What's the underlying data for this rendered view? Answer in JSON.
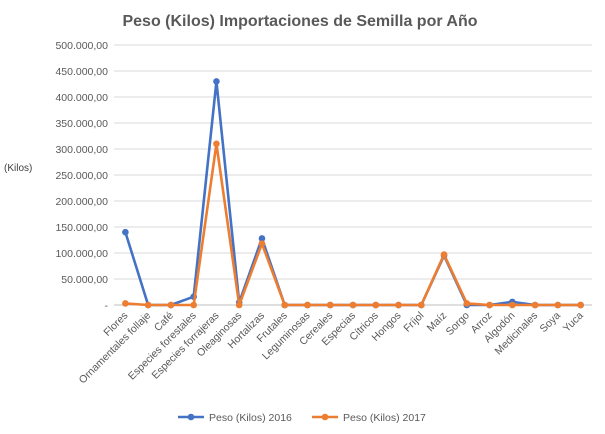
{
  "chart_data": {
    "type": "line",
    "title": "Peso (Kilos) Importaciones de Semilla por Año",
    "ylabel": "(Kilos)",
    "xlabel": "",
    "ylim": [
      0,
      500000
    ],
    "yticks": [
      0,
      50000,
      100000,
      150000,
      200000,
      250000,
      300000,
      350000,
      400000,
      450000,
      500000
    ],
    "ytick_labels": [
      "-",
      "50.000,00",
      "100.000,00",
      "150.000,00",
      "200.000,00",
      "250.000,00",
      "300.000,00",
      "350.000,00",
      "400.000,00",
      "450.000,00",
      "500.000,00"
    ],
    "grid": true,
    "legend_position": "bottom",
    "categories": [
      "Flores",
      "Ornamentales follaje",
      "Café",
      "Especies forestales",
      "Especies forrajeras",
      "Oleaginosas",
      "Hortalizas",
      "Frutales",
      "Leguminosas",
      "Cereales",
      "Especias",
      "Cítricos",
      "Hongos",
      "Fríjol",
      "Maíz",
      "Sorgo",
      "Arroz",
      "Algodón",
      "Medicinales",
      "Soya",
      "Yuca"
    ],
    "series": [
      {
        "name": "Peso (Kilos) 2016",
        "color": "#4472C4",
        "values": [
          140000,
          0,
          0,
          16000,
          430000,
          5000,
          128000,
          0,
          0,
          0,
          0,
          0,
          0,
          0,
          95000,
          0,
          0,
          6000,
          0,
          0,
          0
        ]
      },
      {
        "name": "Peso (Kilos) 2017",
        "color": "#ED7D31",
        "values": [
          3000,
          0,
          0,
          0,
          310000,
          0,
          118000,
          0,
          0,
          0,
          0,
          0,
          0,
          0,
          97000,
          3000,
          0,
          0,
          0,
          0,
          0
        ]
      }
    ]
  }
}
